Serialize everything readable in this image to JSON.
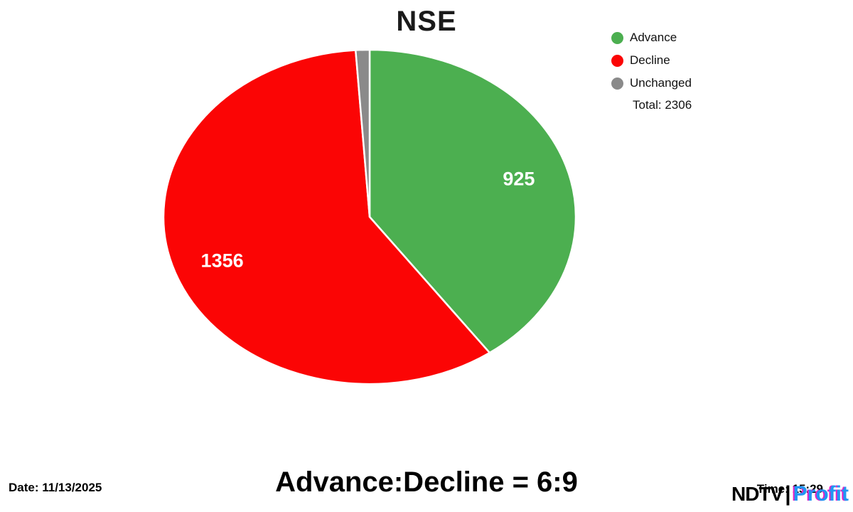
{
  "title": "NSE",
  "chart_data": {
    "type": "pie",
    "title": "NSE",
    "categories": [
      "Advance",
      "Decline",
      "Unchanged"
    ],
    "values": [
      925,
      1356,
      25
    ],
    "colors": [
      "#4caf50",
      "#fb0505",
      "#8a8a8a"
    ],
    "labels_shown": [
      "925",
      "1356",
      ""
    ],
    "total": 2306,
    "start_angle_deg": 0,
    "direction": "clockwise",
    "legend_position": "top-right",
    "grid": false
  },
  "legend": {
    "items": [
      {
        "label": "Advance",
        "color": "#4caf50"
      },
      {
        "label": "Decline",
        "color": "#fb0505"
      },
      {
        "label": "Unchanged",
        "color": "#8a8a8a"
      }
    ],
    "total_label": "Total: 2306"
  },
  "footer": {
    "date_label": "Date: 11/13/2025",
    "ratio_label": "Advance:Decline = 6:9",
    "time_label": "Time: 15:29",
    "brand": {
      "ndtv": "NDTV",
      "separator": "|",
      "profit": "Profit"
    }
  }
}
